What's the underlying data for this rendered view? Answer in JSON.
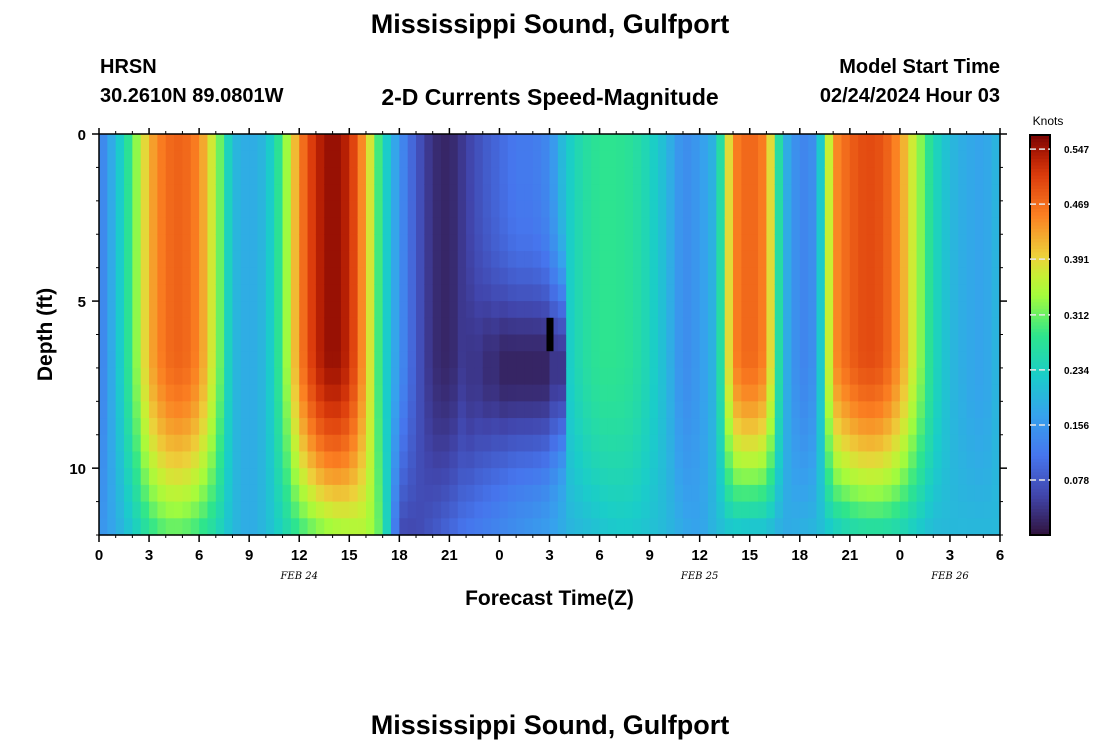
{
  "header": {
    "title": "Mississippi Sound, Gulfport",
    "station": "HRSN",
    "coordinates": "30.2610N  89.0801W",
    "subtitle": "2-D Currents Speed-Magnitude",
    "model_start_label": "Model Start Time",
    "model_start_value": "02/24/2024 Hour 03"
  },
  "footer": {
    "title": "Mississippi Sound, Gulfport"
  },
  "chart_data": {
    "type": "heatmap",
    "title": "2-D Currents Speed-Magnitude",
    "xlabel": "Forecast Time(Z)",
    "ylabel": "Depth (ft)",
    "x_range_hours": [
      0,
      54
    ],
    "y_range_ft": [
      0,
      12
    ],
    "y_inverted": true,
    "x_tick_labels": [
      "0",
      "3",
      "6",
      "9",
      "12",
      "15",
      "18",
      "21",
      "0",
      "3",
      "6",
      "9",
      "12",
      "15",
      "18",
      "21",
      "0",
      "3",
      "6"
    ],
    "y_tick_labels": [
      "0",
      "5",
      "10"
    ],
    "y_tick_values": [
      0,
      5,
      10
    ],
    "date_labels": [
      {
        "text": "FEB 24",
        "hour": 12
      },
      {
        "text": "FEB 25",
        "hour": 36
      },
      {
        "text": "FEB 26",
        "hour": 51
      }
    ],
    "colorbar": {
      "label": "Knots",
      "min": 0.0,
      "max": 0.567,
      "ticks": [
        "0.547",
        "0.469",
        "0.391",
        "0.312",
        "0.234",
        "0.156",
        "0.078"
      ],
      "tick_values": [
        0.547,
        0.469,
        0.391,
        0.312,
        0.234,
        0.156,
        0.078
      ],
      "colormap": "turbo"
    },
    "time_profile_knots": {
      "hours": [
        0,
        1,
        2,
        3,
        4,
        5,
        6,
        7,
        8,
        9,
        10,
        11,
        12,
        13,
        14,
        15,
        16,
        17,
        18,
        19,
        20,
        21,
        22,
        23,
        24,
        25,
        26,
        27,
        28,
        29,
        30,
        31,
        32,
        33,
        34,
        35,
        36,
        37,
        38,
        39,
        40,
        41,
        42,
        43,
        44,
        45,
        46,
        47,
        48,
        49,
        50,
        51,
        52,
        53,
        54
      ],
      "surface": [
        0.12,
        0.2,
        0.3,
        0.42,
        0.47,
        0.48,
        0.45,
        0.35,
        0.2,
        0.18,
        0.2,
        0.3,
        0.45,
        0.53,
        0.56,
        0.53,
        0.42,
        0.25,
        0.15,
        0.08,
        0.03,
        0.02,
        0.05,
        0.08,
        0.1,
        0.12,
        0.12,
        0.14,
        0.22,
        0.26,
        0.28,
        0.28,
        0.27,
        0.24,
        0.2,
        0.14,
        0.16,
        0.2,
        0.45,
        0.48,
        0.45,
        0.2,
        0.13,
        0.15,
        0.44,
        0.48,
        0.5,
        0.49,
        0.44,
        0.35,
        0.25,
        0.2,
        0.18,
        0.17,
        0.2
      ],
      "bottom": [
        0.15,
        0.18,
        0.22,
        0.27,
        0.3,
        0.3,
        0.28,
        0.25,
        0.2,
        0.18,
        0.2,
        0.24,
        0.28,
        0.31,
        0.33,
        0.34,
        0.35,
        0.3,
        0.06,
        0.06,
        0.08,
        0.1,
        0.12,
        0.13,
        0.14,
        0.15,
        0.16,
        0.17,
        0.19,
        0.2,
        0.21,
        0.22,
        0.22,
        0.21,
        0.2,
        0.18,
        0.17,
        0.2,
        0.21,
        0.2,
        0.2,
        0.18,
        0.19,
        0.2,
        0.22,
        0.24,
        0.25,
        0.25,
        0.24,
        0.22,
        0.2,
        0.2,
        0.2,
        0.2,
        0.2
      ],
      "min_depth_ft": [
        6.5,
        6.5,
        6.5,
        6.5,
        6.5,
        6.5,
        6.5,
        6.5,
        6.5,
        6.5,
        6.5,
        6.5,
        6.5,
        6.5,
        6.5,
        6.5,
        6.5,
        6.5,
        6.5,
        6.5,
        6.5,
        6.5,
        6.5,
        6.5,
        7.0,
        7.0,
        7.0,
        7.0,
        6.5,
        6.5,
        6.5,
        6.5,
        6.5,
        6.5,
        6.5,
        6.5,
        6.5,
        6.5,
        6.5,
        6.5,
        6.5,
        6.5,
        6.5,
        6.5,
        6.5,
        6.5,
        6.5,
        6.5,
        6.5,
        6.5,
        7.0,
        7.0,
        7.0,
        7.0,
        7.0
      ]
    },
    "mid_depth_minimum_knots": {
      "hours": [
        22,
        23,
        24,
        25,
        26,
        27,
        28
      ],
      "values": [
        0.02,
        0.01,
        0.0,
        0.0,
        0.0,
        0.02,
        0.06
      ]
    },
    "missing_cell": {
      "hour": 27,
      "depth_ft": [
        5.5,
        6.5
      ]
    }
  }
}
